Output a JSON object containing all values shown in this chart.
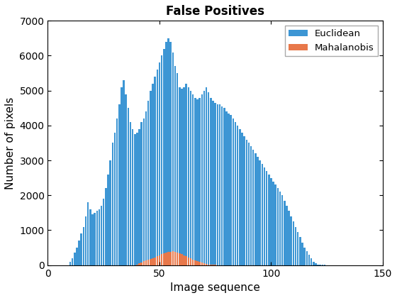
{
  "title": "False Positives",
  "xlabel": "Image sequence",
  "ylabel": "Number of pixels",
  "xlim": [
    0,
    150
  ],
  "ylim": [
    0,
    7000
  ],
  "bar_color_euclidean": "#3D96D4",
  "bar_color_mahalanobis": "#E8784A",
  "legend_labels": [
    "Euclidean",
    "Mahalanobis"
  ],
  "euclidean": [
    100,
    200,
    350,
    500,
    700,
    900,
    1100,
    1400,
    1800,
    1600,
    1450,
    1500,
    1550,
    1600,
    1700,
    1900,
    2200,
    2600,
    3000,
    3500,
    3800,
    4200,
    4600,
    5100,
    5300,
    4900,
    4500,
    4100,
    3900,
    3750,
    3800,
    3900,
    4100,
    4200,
    4400,
    4700,
    5000,
    5200,
    5400,
    5600,
    5800,
    6000,
    6200,
    6400,
    6500,
    6400,
    6100,
    5700,
    5500,
    5100,
    5050,
    5100,
    5200,
    5100,
    5000,
    4900,
    4800,
    4750,
    4800,
    4900,
    5000,
    5100,
    4950,
    4800,
    4700,
    4650,
    4600,
    4600,
    4550,
    4500,
    4400,
    4350,
    4300,
    4200,
    4100,
    4000,
    3900,
    3800,
    3700,
    3600,
    3500,
    3400,
    3300,
    3200,
    3100,
    3000,
    2900,
    2800,
    2700,
    2600,
    2500,
    2400,
    2300,
    2200,
    2100,
    2000,
    1850,
    1700,
    1550,
    1400,
    1250,
    1100,
    950,
    800,
    650,
    500,
    400,
    300,
    200,
    100,
    50,
    20,
    10,
    5,
    3,
    1,
    0,
    0,
    0,
    0
  ],
  "mahalanobis": [
    0,
    0,
    0,
    0,
    0,
    0,
    0,
    0,
    0,
    0,
    0,
    0,
    0,
    0,
    0,
    0,
    0,
    0,
    0,
    0,
    0,
    0,
    0,
    0,
    0,
    0,
    0,
    0,
    0,
    0,
    20,
    50,
    80,
    110,
    140,
    160,
    180,
    200,
    220,
    250,
    280,
    310,
    330,
    350,
    370,
    380,
    390,
    380,
    360,
    340,
    310,
    280,
    250,
    220,
    190,
    160,
    140,
    120,
    100,
    80,
    60,
    40,
    20,
    10,
    5,
    3,
    1,
    0,
    0,
    0,
    0,
    0,
    0,
    0,
    0,
    0,
    0,
    0,
    0,
    0,
    0,
    0,
    0,
    0,
    0,
    0,
    0,
    0,
    0,
    0,
    0,
    0,
    0,
    0,
    0,
    0,
    0,
    0,
    0,
    0,
    0,
    0,
    0,
    0,
    0,
    0,
    0,
    0,
    0,
    0,
    0,
    0,
    0,
    0,
    0,
    0,
    0,
    0,
    0,
    0
  ],
  "x_start": 10,
  "bar_width": 0.8,
  "title_fontsize": 12,
  "axis_fontsize": 11,
  "yticks": [
    0,
    1000,
    2000,
    3000,
    4000,
    5000,
    6000,
    7000
  ],
  "xticks": [
    0,
    50,
    100,
    150
  ],
  "figsize": [
    5.6,
    4.2
  ],
  "dpi": 100
}
